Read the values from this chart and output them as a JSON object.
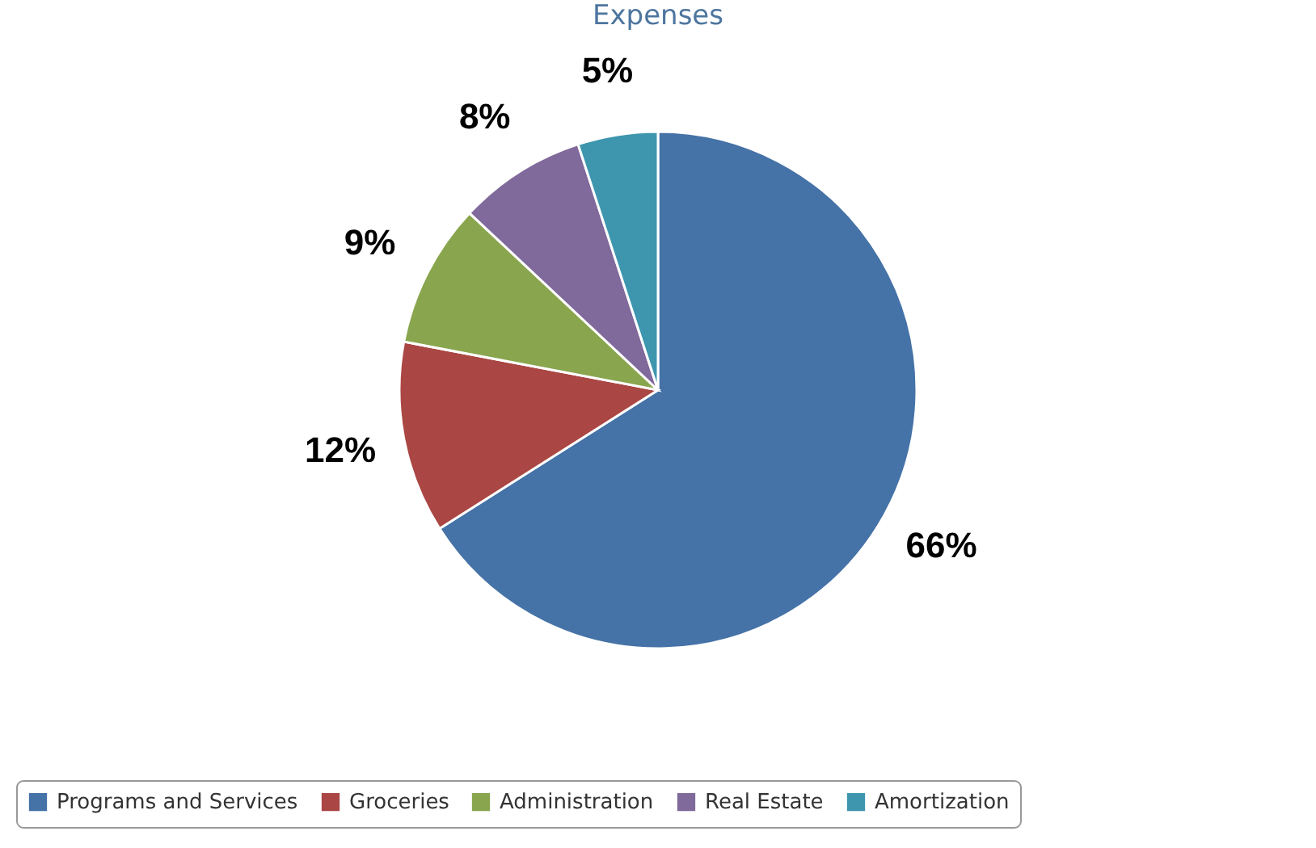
{
  "chart_data": {
    "type": "pie",
    "title": "Expenses",
    "categories": [
      "Programs and Services",
      "Groceries",
      "Administration",
      "Real Estate",
      "Amortization"
    ],
    "values": [
      66,
      12,
      9,
      8,
      5
    ],
    "colors": [
      "#4572a7",
      "#aa4643",
      "#89a54e",
      "#80699b",
      "#3d96ae"
    ],
    "value_labels": [
      "66%",
      "12%",
      "9%",
      "8%",
      "5%"
    ],
    "legend": "bottom"
  }
}
